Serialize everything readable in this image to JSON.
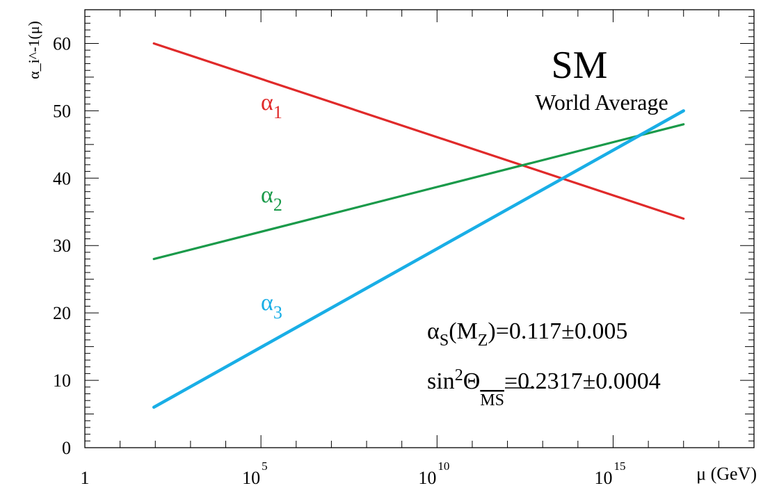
{
  "chart_data": {
    "type": "line",
    "title": "SM",
    "subtitle": "World Average",
    "xlabel": "μ (GeV)",
    "ylabel": "α_i^-1(μ)",
    "x_scale": "log10",
    "xlim": [
      1,
      1e+19
    ],
    "ylim": [
      0,
      65
    ],
    "x_major_ticks": [
      {
        "mantissa": "1",
        "exp": ""
      },
      {
        "mantissa": "10",
        "exp": "5"
      },
      {
        "mantissa": "10",
        "exp": "10"
      },
      {
        "mantissa": "10",
        "exp": "15"
      }
    ],
    "x_major_tick_values": [
      1,
      100000,
      10000000000,
      1000000000000000
    ],
    "y_ticks": [
      0,
      10,
      20,
      30,
      40,
      50,
      60
    ],
    "series": [
      {
        "name": "α",
        "sub": "1",
        "color": "#e02a2a",
        "x": [
          91.2,
          1e+17
        ],
        "y": [
          60,
          34
        ]
      },
      {
        "name": "α",
        "sub": "2",
        "color": "#1a9a4a",
        "x": [
          91.2,
          1e+17
        ],
        "y": [
          28,
          48
        ]
      },
      {
        "name": "α",
        "sub": "3",
        "color": "#19aee6",
        "x": [
          91.2,
          1e+17
        ],
        "y": [
          6,
          50
        ]
      }
    ],
    "annotations": {
      "alpha_s": {
        "pre": "α",
        "sub1": "S",
        "mid": "(M",
        "sub2": "Z",
        "post": ")=0.117±0.005"
      },
      "sin2": {
        "pre": "sin",
        "sup": "2",
        "theta": "Θ",
        "sub": "MS",
        "post": "=0.2317±0.0004"
      }
    }
  }
}
